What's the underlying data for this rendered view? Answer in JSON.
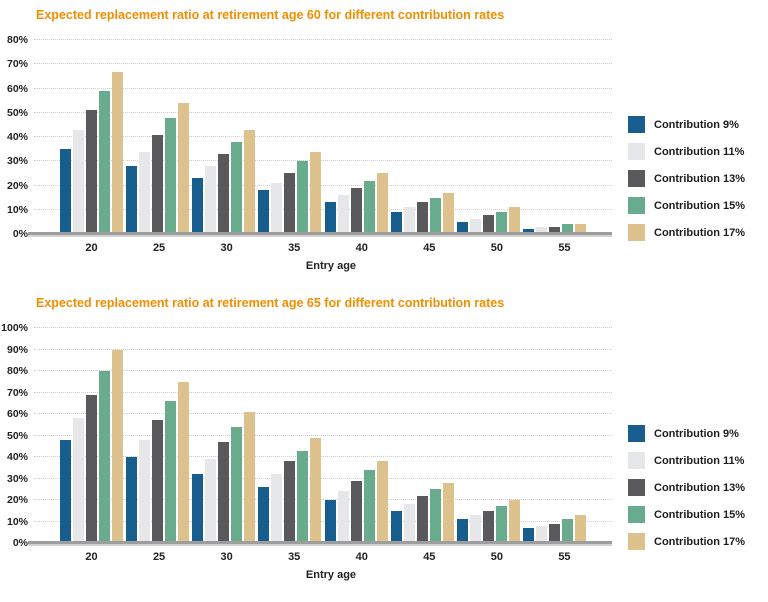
{
  "style": {
    "title_color": "#f28e00",
    "text_color": "#222222",
    "axis_line_color": "#9d9d9d",
    "series_colors": [
      "#175d8d",
      "#e6e7e8",
      "#59595b",
      "#68ac8d",
      "#dec28e"
    ]
  },
  "chart_data": [
    {
      "type": "bar",
      "title": "Expected replacement ratio at retirement age 60 for different contribution rates",
      "xlabel": "Entry age",
      "categories": [
        "20",
        "25",
        "30",
        "35",
        "40",
        "45",
        "50",
        "55"
      ],
      "series": [
        {
          "name": "Contribution 9%",
          "values": [
            35,
            28,
            23,
            18,
            13,
            9,
            5,
            2
          ]
        },
        {
          "name": "Contribution 11%",
          "values": [
            43,
            34,
            28,
            21,
            16,
            11,
            6,
            3
          ]
        },
        {
          "name": "Contribution 13%",
          "values": [
            51,
            41,
            33,
            25,
            19,
            13,
            8,
            3
          ]
        },
        {
          "name": "Contribution 15%",
          "values": [
            59,
            48,
            38,
            30,
            22,
            15,
            9,
            4
          ]
        },
        {
          "name": "Contribution 17%",
          "values": [
            67,
            54,
            43,
            34,
            25,
            17,
            11,
            4
          ]
        }
      ],
      "ylim": [
        0,
        80
      ],
      "ytick_step": 10,
      "ytick_format": "percent",
      "grid": true,
      "legend_position": "right"
    },
    {
      "type": "bar",
      "title": "Expected replacement ratio at retirement age 65 for different contribution rates",
      "xlabel": "Entry age",
      "categories": [
        "20",
        "25",
        "30",
        "35",
        "40",
        "45",
        "50",
        "55"
      ],
      "series": [
        {
          "name": "Contribution 9%",
          "values": [
            48,
            40,
            32,
            26,
            20,
            15,
            11,
            7
          ]
        },
        {
          "name": "Contribution 11%",
          "values": [
            58,
            48,
            39,
            32,
            24,
            18,
            13,
            8
          ]
        },
        {
          "name": "Contribution 13%",
          "values": [
            69,
            57,
            47,
            38,
            29,
            22,
            15,
            9
          ]
        },
        {
          "name": "Contribution 15%",
          "values": [
            80,
            66,
            54,
            43,
            34,
            25,
            17,
            11
          ]
        },
        {
          "name": "Contribution 17%",
          "values": [
            90,
            75,
            61,
            49,
            38,
            28,
            20,
            13
          ]
        }
      ],
      "ylim": [
        0,
        100
      ],
      "ytick_step": 10,
      "ytick_format": "percent",
      "grid": true,
      "legend_position": "right"
    }
  ]
}
